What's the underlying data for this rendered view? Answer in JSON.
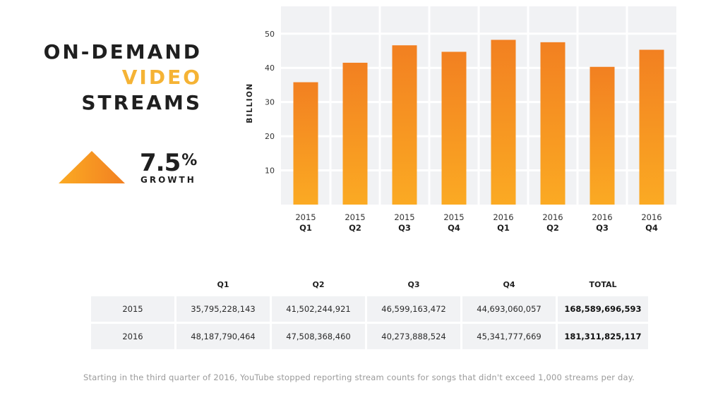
{
  "title": {
    "line1": "ON-DEMAND",
    "line2": "VIDEO",
    "line3": "STREAMS"
  },
  "growth": {
    "value": "7.5",
    "unit": "%",
    "label": "GROWTH"
  },
  "colors": {
    "accent": "#f5b335",
    "bar_top": "#f28021",
    "bar_bottom": "#fbaa23",
    "plot_bg": "#f1f2f4",
    "grid": "#ffffff"
  },
  "chart_data": {
    "type": "bar",
    "categories": [
      {
        "year": "2015",
        "quarter": "Q1"
      },
      {
        "year": "2015",
        "quarter": "Q2"
      },
      {
        "year": "2015",
        "quarter": "Q3"
      },
      {
        "year": "2015",
        "quarter": "Q4"
      },
      {
        "year": "2016",
        "quarter": "Q1"
      },
      {
        "year": "2016",
        "quarter": "Q2"
      },
      {
        "year": "2016",
        "quarter": "Q3"
      },
      {
        "year": "2016",
        "quarter": "Q4"
      }
    ],
    "values": [
      35.8,
      41.5,
      46.6,
      44.7,
      48.2,
      47.5,
      40.3,
      45.3
    ],
    "ylabel": "BILLION",
    "yticks": [
      "10",
      "20",
      "30",
      "40",
      "50"
    ],
    "ylim": [
      0,
      58
    ],
    "grid": true
  },
  "table": {
    "headers": [
      "",
      "Q1",
      "Q2",
      "Q3",
      "Q4",
      "TOTAL"
    ],
    "rows": [
      {
        "year": "2015",
        "q1": "35,795,228,143",
        "q2": "41,502,244,921",
        "q3": "46,599,163,472",
        "q4": "44,693,060,057",
        "total": "168,589,696,593"
      },
      {
        "year": "2016",
        "q1": "48,187,790,464",
        "q2": "47,508,368,460",
        "q3": "40,273,888,524",
        "q4": "45,341,777,669",
        "total": "181,311,825,117"
      }
    ]
  },
  "footnote": "Starting in the third quarter of 2016, YouTube stopped reporting stream counts for songs that didn't exceed 1,000 streams per day."
}
